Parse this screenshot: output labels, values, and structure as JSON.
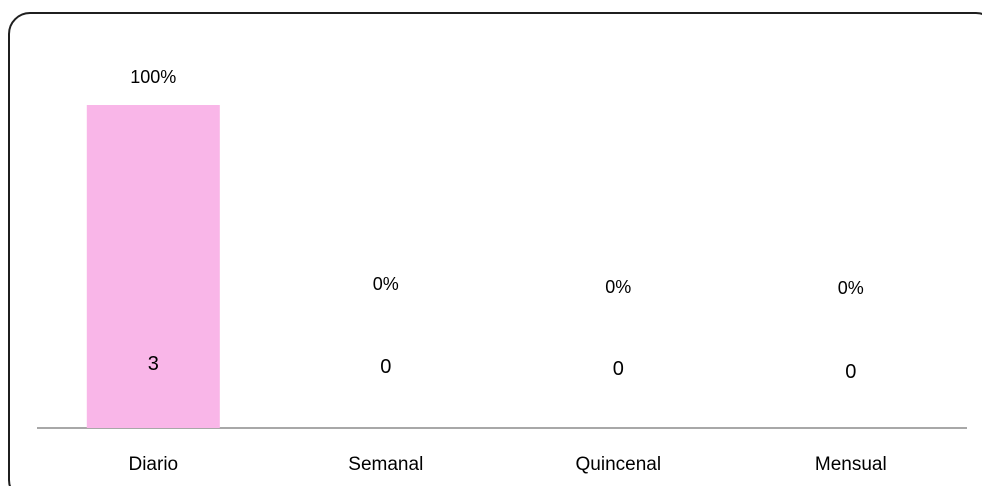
{
  "chart_data": {
    "type": "bar",
    "categories": [
      "Diario",
      "Semanal",
      "Quincenal",
      "Mensual"
    ],
    "values": [
      3,
      0,
      0,
      0
    ],
    "percent_labels": [
      "100%",
      "0%",
      "0%",
      "0%"
    ],
    "value_labels": [
      "3",
      "0",
      "0",
      "0"
    ],
    "ylim": [
      0,
      3
    ],
    "grid": false,
    "legend": "none",
    "colors": {
      "bar": "#f9b6e8",
      "axis": "#8c8c8c",
      "frame": "#1f1f1f"
    }
  }
}
